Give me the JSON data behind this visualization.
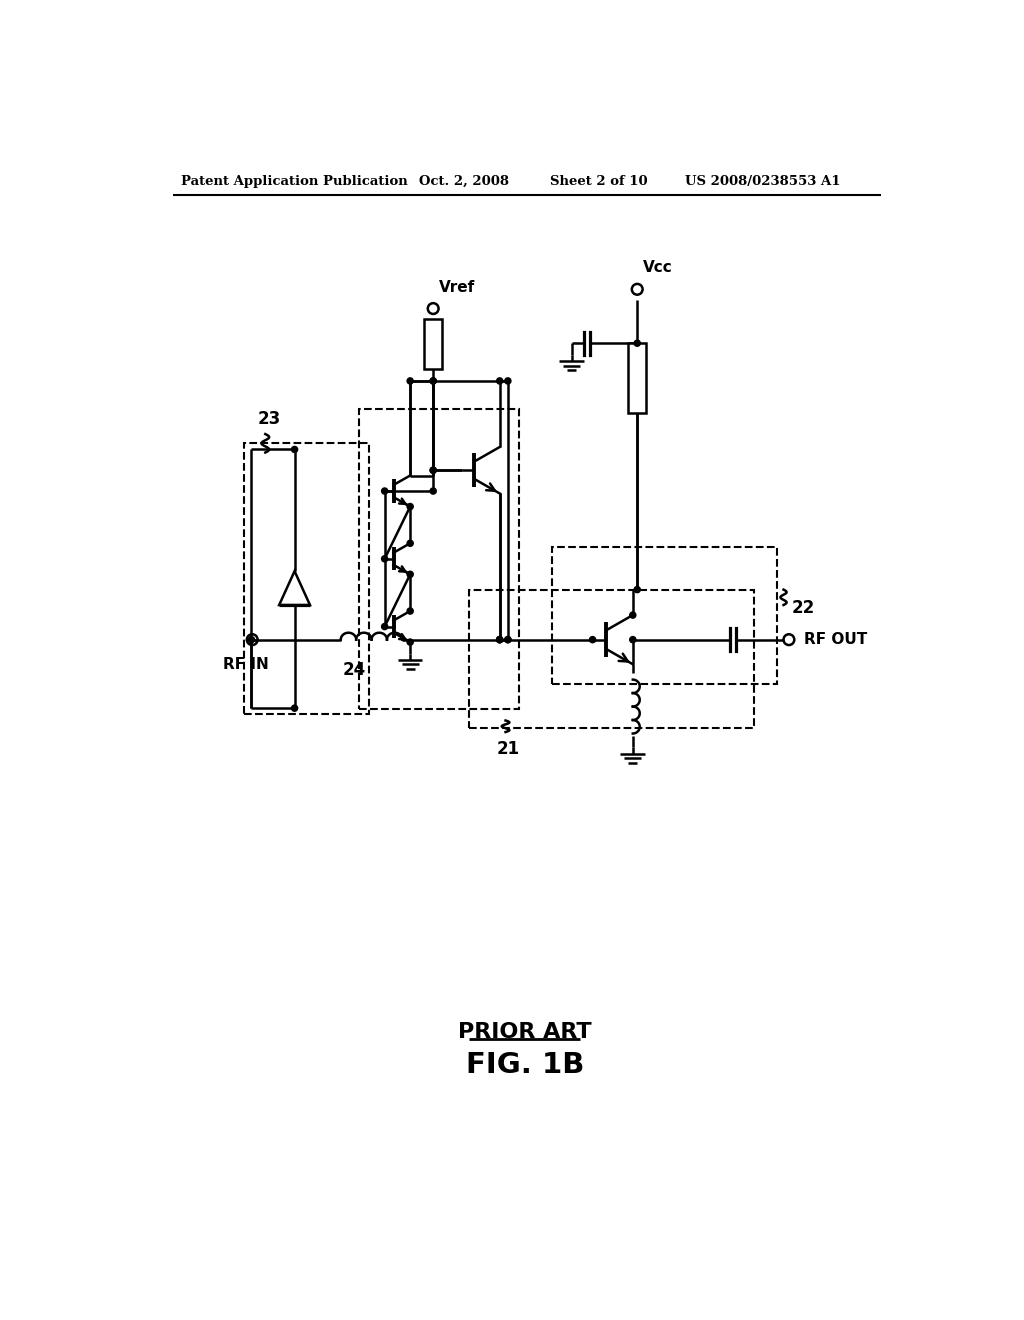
{
  "bg": "#ffffff",
  "header_left": "Patent Application Publication",
  "header_mid1": "Oct. 2, 2008",
  "header_mid2": "Sheet 2 of 10",
  "header_right": "US 2008/0238553 A1",
  "prior_art": "PRIOR ART",
  "fig_label": "FIG. 1B",
  "label_vref": "Vref",
  "label_vcc": "Vcc",
  "label_23": "23",
  "label_22": "22",
  "label_24": "24",
  "label_21": "21",
  "label_rf_in": "RF IN",
  "label_rf_out": "RF OUT"
}
